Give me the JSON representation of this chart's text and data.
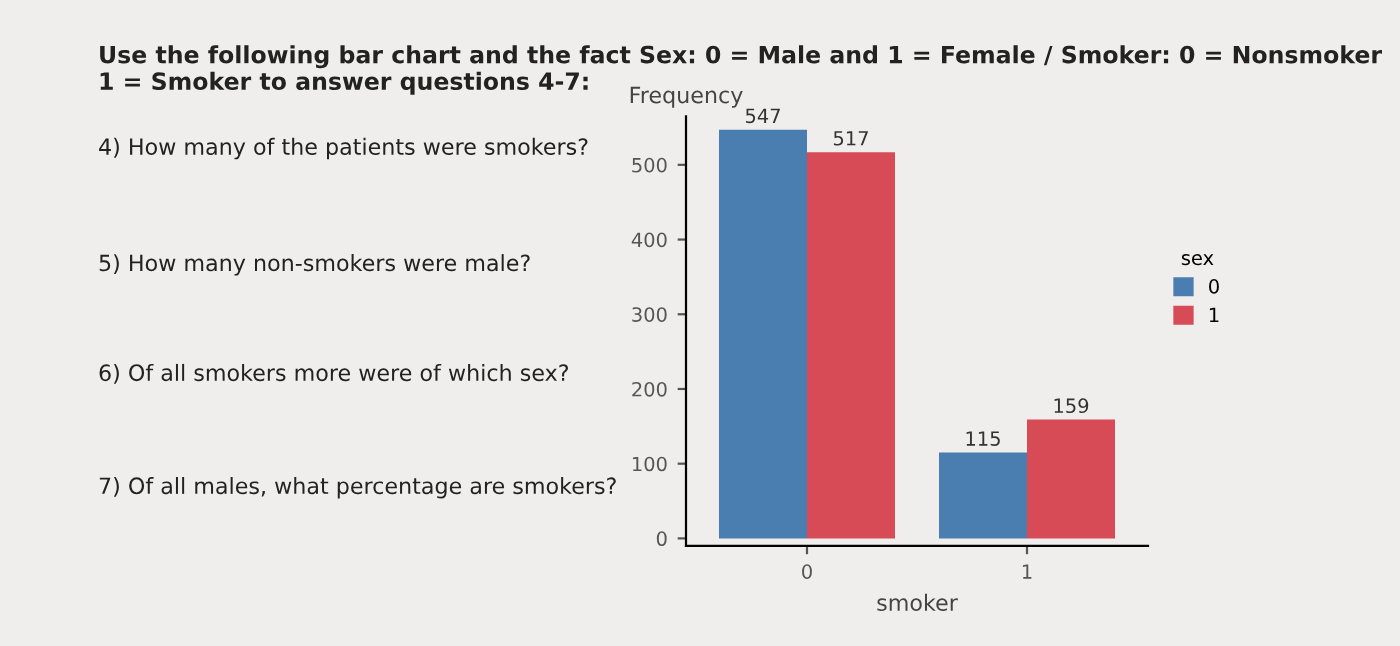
{
  "chart_data": {
    "type": "bar",
    "title": "Use the following bar chart and the fact Sex: 0 = Male and 1 = Female / Smoker: 0 = Nonsmoker 1 = Smoker to answer questions 4-7:",
    "annotations": [
      "4) How many of the patients were smokers?",
      "5) How many non-smokers were male?",
      "6) Of all smokers more were of which sex?",
      "7) Of all males, what percentage are smokers?"
    ],
    "xlabel": "smoker",
    "ylabel": "Frequency",
    "legend_title": "sex",
    "legend": "right",
    "categories": [
      "0",
      "1"
    ],
    "series": [
      {
        "name": "0",
        "color": "#4a7db0",
        "values": [
          547,
          115
        ]
      },
      {
        "name": "1",
        "color": "#d64b55",
        "values": [
          517,
          159
        ]
      }
    ],
    "ylim": [
      -10,
      565
    ],
    "yticks": [
      0,
      100,
      200,
      300,
      400,
      500
    ],
    "data_labels": true,
    "grid": false
  }
}
